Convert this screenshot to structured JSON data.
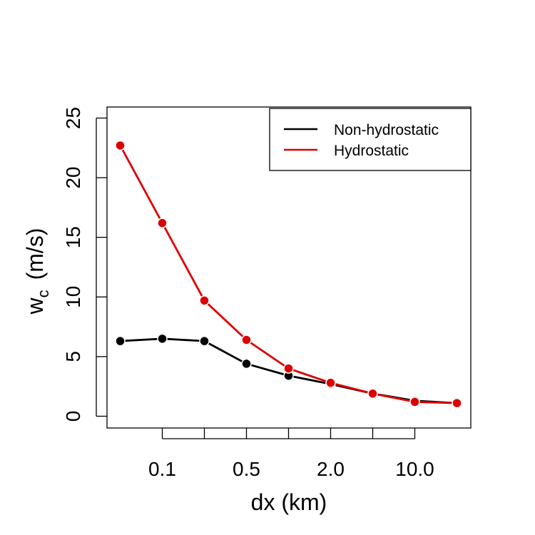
{
  "chart_data": {
    "type": "line",
    "title": "",
    "xlabel": "dx (km)",
    "ylabel_main": "w",
    "ylabel_sub": "c",
    "ylabel_units": "(m/s)",
    "ylim": [
      0,
      25
    ],
    "yticks": [
      0,
      5,
      10,
      15,
      20,
      25
    ],
    "ytick_labels": [
      "0",
      "5",
      "10",
      "15",
      "20",
      "25"
    ],
    "x_index": [
      0,
      1,
      2,
      3,
      4,
      5,
      6,
      7,
      8
    ],
    "xticks": [
      1,
      2,
      3,
      4,
      5,
      6,
      7
    ],
    "xtick_labels": [
      "0.1",
      "",
      "0.5",
      "",
      "2.0",
      "",
      "10.0"
    ],
    "legend_position": "top-right",
    "series": [
      {
        "name": "Non-hydrostatic",
        "color": "#000000",
        "values": [
          6.3,
          6.5,
          6.3,
          4.4,
          3.4,
          2.7,
          1.9,
          1.3,
          1.1
        ]
      },
      {
        "name": "Hydrostatic",
        "color": "#dd0000",
        "values": [
          22.7,
          16.2,
          9.7,
          6.4,
          4.0,
          2.8,
          1.9,
          1.2,
          1.1
        ]
      }
    ]
  }
}
